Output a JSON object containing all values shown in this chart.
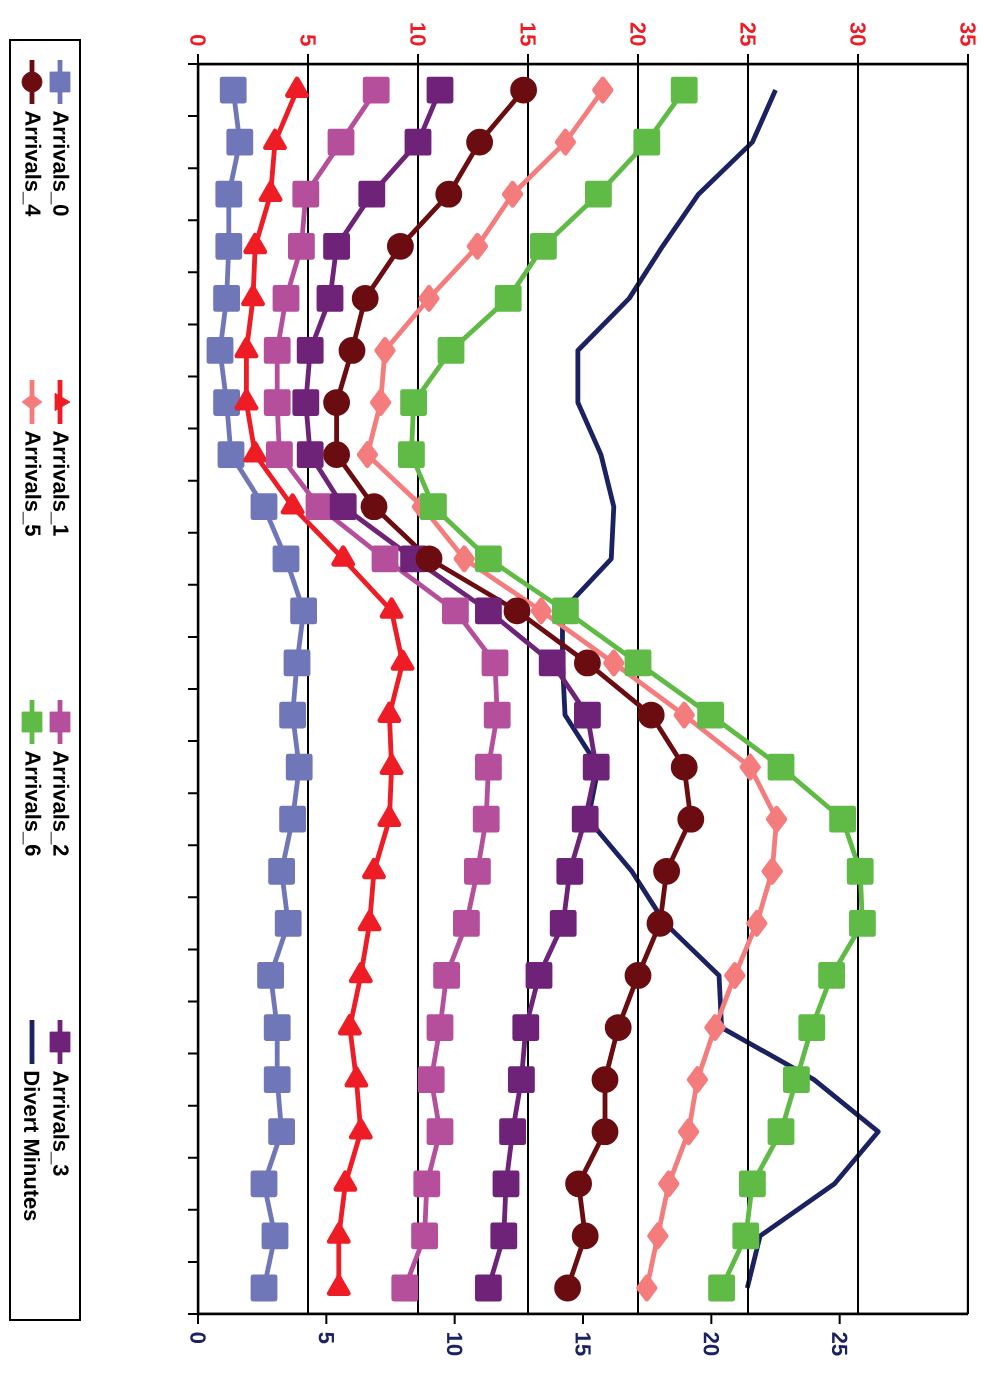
{
  "chart_data": {
    "type": "line",
    "orientation": "horizontal",
    "categories": [
      null,
      null,
      null,
      null,
      null,
      null,
      null,
      null,
      null,
      null,
      null,
      null,
      null,
      null,
      null,
      null,
      null,
      null,
      null,
      null,
      null,
      null,
      null,
      null
    ],
    "x2lim": [
      0,
      35
    ],
    "x2ticks": [
      0,
      5,
      10,
      15,
      20,
      25,
      30,
      35
    ],
    "xlim": [
      0,
      30
    ],
    "xticks": [
      0,
      5,
      10,
      15,
      20,
      25
    ],
    "grid": "x2",
    "legend": "left",
    "series": [
      {
        "name": "Arrivals_0",
        "color": "#7077b8",
        "marker": "square",
        "axis": "x2",
        "values": [
          1.6,
          1.9,
          1.4,
          1.4,
          1.3,
          1.0,
          1.3,
          1.5,
          3.0,
          4.0,
          4.8,
          4.5,
          4.3,
          4.6,
          4.3,
          3.8,
          4.1,
          3.3,
          3.6,
          3.6,
          3.8,
          3.0,
          3.5,
          3.0
        ]
      },
      {
        "name": "Arrivals_1",
        "color": "#ee1c25",
        "marker": "triangle",
        "axis": "x2",
        "values": [
          4.5,
          3.5,
          3.3,
          2.6,
          2.5,
          2.2,
          2.2,
          2.6,
          4.3,
          6.6,
          8.8,
          9.3,
          8.7,
          8.8,
          8.7,
          8.0,
          7.8,
          7.4,
          6.9,
          7.2,
          7.4,
          6.7,
          6.4,
          6.4
        ]
      },
      {
        "name": "Arrivals_2",
        "color": "#b54f9c",
        "marker": "square",
        "axis": "x2",
        "values": [
          8.1,
          6.5,
          4.9,
          4.7,
          4.0,
          3.6,
          3.6,
          3.7,
          5.5,
          8.5,
          11.7,
          13.5,
          13.6,
          13.2,
          13.1,
          12.7,
          12.2,
          11.3,
          11.0,
          10.6,
          11.0,
          10.4,
          10.3,
          9.4
        ]
      },
      {
        "name": "Arrivals_3",
        "color": "#6e2278",
        "marker": "square",
        "axis": "x2",
        "values": [
          11.0,
          10.0,
          7.9,
          6.3,
          6.0,
          5.1,
          4.9,
          5.1,
          6.6,
          9.8,
          13.2,
          16.1,
          17.7,
          18.1,
          17.6,
          16.9,
          16.6,
          15.5,
          14.9,
          14.7,
          14.3,
          14.0,
          13.9,
          13.2
        ]
      },
      {
        "name": "Arrivals_4",
        "color": "#6b0d10",
        "marker": "circle",
        "axis": "x2",
        "values": [
          14.8,
          12.8,
          11.4,
          9.2,
          7.6,
          7.0,
          6.3,
          6.3,
          8.0,
          10.5,
          14.5,
          17.7,
          20.6,
          22.1,
          22.4,
          21.3,
          21.0,
          20.0,
          19.1,
          18.5,
          18.5,
          17.3,
          17.6,
          16.8
        ]
      },
      {
        "name": "Arrivals_5",
        "color": "#f47c7c",
        "marker": "diamond",
        "axis": "x2",
        "values": [
          18.4,
          16.7,
          14.3,
          12.7,
          10.5,
          8.5,
          8.3,
          7.7,
          10.2,
          12.1,
          15.6,
          18.9,
          22.1,
          25.1,
          26.3,
          26.1,
          25.4,
          24.4,
          23.5,
          22.7,
          22.3,
          21.4,
          20.9,
          20.4
        ]
      },
      {
        "name": "Arrivals_6",
        "color": "#5fba46",
        "marker": "square",
        "axis": "x2",
        "values": [
          22.1,
          20.4,
          18.2,
          15.7,
          14.1,
          11.5,
          9.8,
          9.7,
          10.7,
          13.2,
          16.7,
          20.0,
          23.3,
          26.5,
          29.3,
          30.1,
          30.2,
          28.8,
          27.9,
          27.2,
          26.5,
          25.2,
          24.9,
          23.8
        ]
      },
      {
        "name": "Divert Minutes",
        "color": "#1a2262",
        "marker": "none",
        "values": [
          22.5,
          21.6,
          19.5,
          18.1,
          16.8,
          14.8,
          14.8,
          15.7,
          16.2,
          16.1,
          14.2,
          14.2,
          14.3,
          15.6,
          15.2,
          16.9,
          18.2,
          20.3,
          20.4,
          24.0,
          26.5,
          24.8,
          21.9,
          21.4
        ]
      }
    ]
  }
}
